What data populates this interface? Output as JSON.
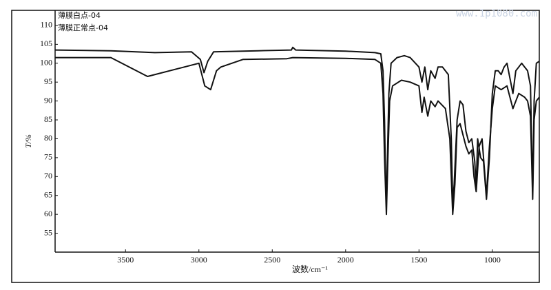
{
  "chart_data": {
    "type": "line",
    "watermark": "www.1p1080.com",
    "x_label": "波数/cm⁻¹",
    "y_label": "T/%",
    "xlim": [
      3980,
      680
    ],
    "ylim": [
      50,
      114
    ],
    "xticks": [
      3500,
      3000,
      2500,
      2000,
      1500,
      1000
    ],
    "yticks": [
      55,
      60,
      65,
      70,
      75,
      80,
      85,
      90,
      95,
      100,
      105,
      110
    ],
    "series": [
      {
        "name": "薄膜白点-04",
        "color": "#111111",
        "x": [
          3980,
          3600,
          3300,
          3050,
          2990,
          2965,
          2940,
          2900,
          2600,
          2370,
          2360,
          2340,
          2000,
          1800,
          1760,
          1745,
          1735,
          1728,
          1722,
          1715,
          1705,
          1690,
          1650,
          1600,
          1560,
          1500,
          1480,
          1460,
          1440,
          1420,
          1390,
          1370,
          1340,
          1300,
          1280,
          1270,
          1260,
          1240,
          1220,
          1200,
          1180,
          1160,
          1140,
          1120,
          1110,
          1100,
          1080,
          1060,
          1040,
          1020,
          1000,
          980,
          960,
          940,
          920,
          900,
          880,
          860,
          840,
          800,
          760,
          740,
          725,
          715,
          700,
          680
        ],
        "values": [
          103.5,
          103.3,
          102.8,
          103,
          101,
          97.5,
          100.5,
          103,
          103.3,
          103.5,
          104.2,
          103.5,
          103.2,
          102.8,
          102.5,
          98,
          85,
          70,
          65,
          75,
          92,
          100,
          101.5,
          102,
          101.5,
          99,
          95,
          99,
          93,
          98,
          96,
          99,
          99,
          97,
          80,
          63,
          68,
          85,
          90,
          89,
          82,
          79,
          80,
          74,
          67,
          80,
          75,
          74,
          64,
          75,
          92,
          98,
          98,
          97,
          99,
          100,
          96,
          92,
          98,
          100,
          98,
          94,
          66,
          90,
          100,
          100.5
        ]
      },
      {
        "name": "薄膜正常点-04",
        "color": "#111111",
        "x": [
          3980,
          3600,
          3350,
          3100,
          3000,
          2960,
          2920,
          2880,
          2850,
          2700,
          2400,
          2360,
          2000,
          1800,
          1760,
          1745,
          1735,
          1722,
          1712,
          1700,
          1680,
          1620,
          1560,
          1500,
          1480,
          1465,
          1440,
          1420,
          1390,
          1370,
          1320,
          1290,
          1270,
          1255,
          1240,
          1220,
          1180,
          1160,
          1140,
          1125,
          1110,
          1090,
          1070,
          1040,
          1020,
          1000,
          980,
          940,
          900,
          880,
          860,
          820,
          780,
          760,
          740,
          725,
          715,
          700,
          680
        ],
        "values": [
          101.5,
          101.5,
          96.5,
          99,
          100,
          94,
          93,
          98,
          99,
          101,
          101.2,
          101.5,
          101.3,
          101,
          100,
          92,
          75,
          60,
          75,
          90,
          94,
          95.5,
          95,
          94,
          87,
          91,
          86,
          90,
          88.5,
          90,
          88,
          80,
          60,
          68,
          83,
          84,
          78,
          76,
          77,
          70,
          66,
          78,
          80,
          65,
          78,
          88,
          94,
          93,
          94,
          91,
          88,
          92,
          91,
          90,
          86,
          64,
          85,
          90,
          91
        ]
      }
    ]
  }
}
